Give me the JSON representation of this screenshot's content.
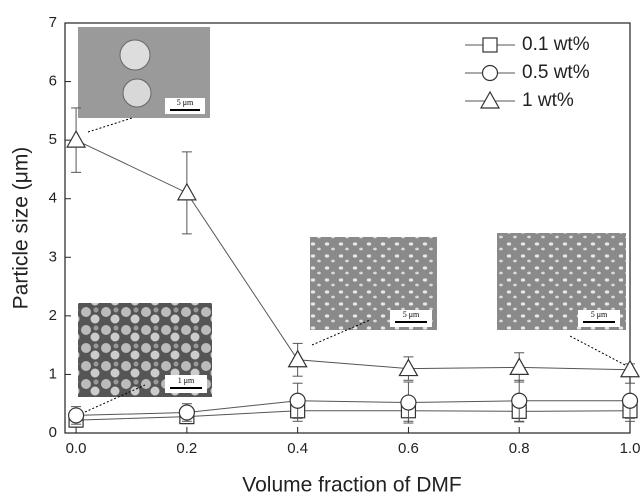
{
  "chart_data": {
    "type": "line",
    "x_label": "Volume fraction of DMF",
    "y_label": "Particle size (μm)",
    "x": [
      0,
      0.2,
      0.4,
      0.6,
      0.8,
      1.0
    ],
    "xlim": [
      -0.02,
      1.0
    ],
    "ylim": [
      0,
      7
    ],
    "xticks": [
      {
        "value": 0,
        "label": "0.0"
      },
      0.2,
      0.4,
      0.6,
      0.8,
      {
        "value": 1.0,
        "label": "1.0"
      }
    ],
    "yticks": [
      0,
      1,
      2,
      3,
      4,
      5,
      6,
      7
    ],
    "legend": "upper right",
    "series": [
      {
        "name": "0.1 wt%",
        "color": "#555555",
        "marker": "square",
        "values": [
          0.22,
          0.28,
          0.38,
          0.38,
          0.37,
          0.38
        ],
        "errors": [
          0.12,
          0.12,
          0.18,
          0.18,
          0.18,
          0.18
        ]
      },
      {
        "name": "0.5 wt%",
        "color": "#555555",
        "marker": "circle",
        "values": [
          0.3,
          0.35,
          0.55,
          0.52,
          0.55,
          0.55
        ],
        "errors": [
          0.15,
          0.15,
          0.3,
          0.35,
          0.35,
          0.3
        ]
      },
      {
        "name": "1 wt%",
        "color": "#555555",
        "marker": "triangle",
        "values": [
          5.0,
          4.1,
          1.25,
          1.1,
          1.12,
          1.08
        ],
        "errors": [
          0.55,
          0.7,
          0.28,
          0.2,
          0.25,
          0.1
        ]
      }
    ],
    "insets": [
      {
        "scale_label": "5 μm"
      },
      {
        "scale_label": "1 μm"
      },
      {
        "scale_label": "5 μm"
      },
      {
        "scale_label": "5 μm"
      }
    ]
  }
}
